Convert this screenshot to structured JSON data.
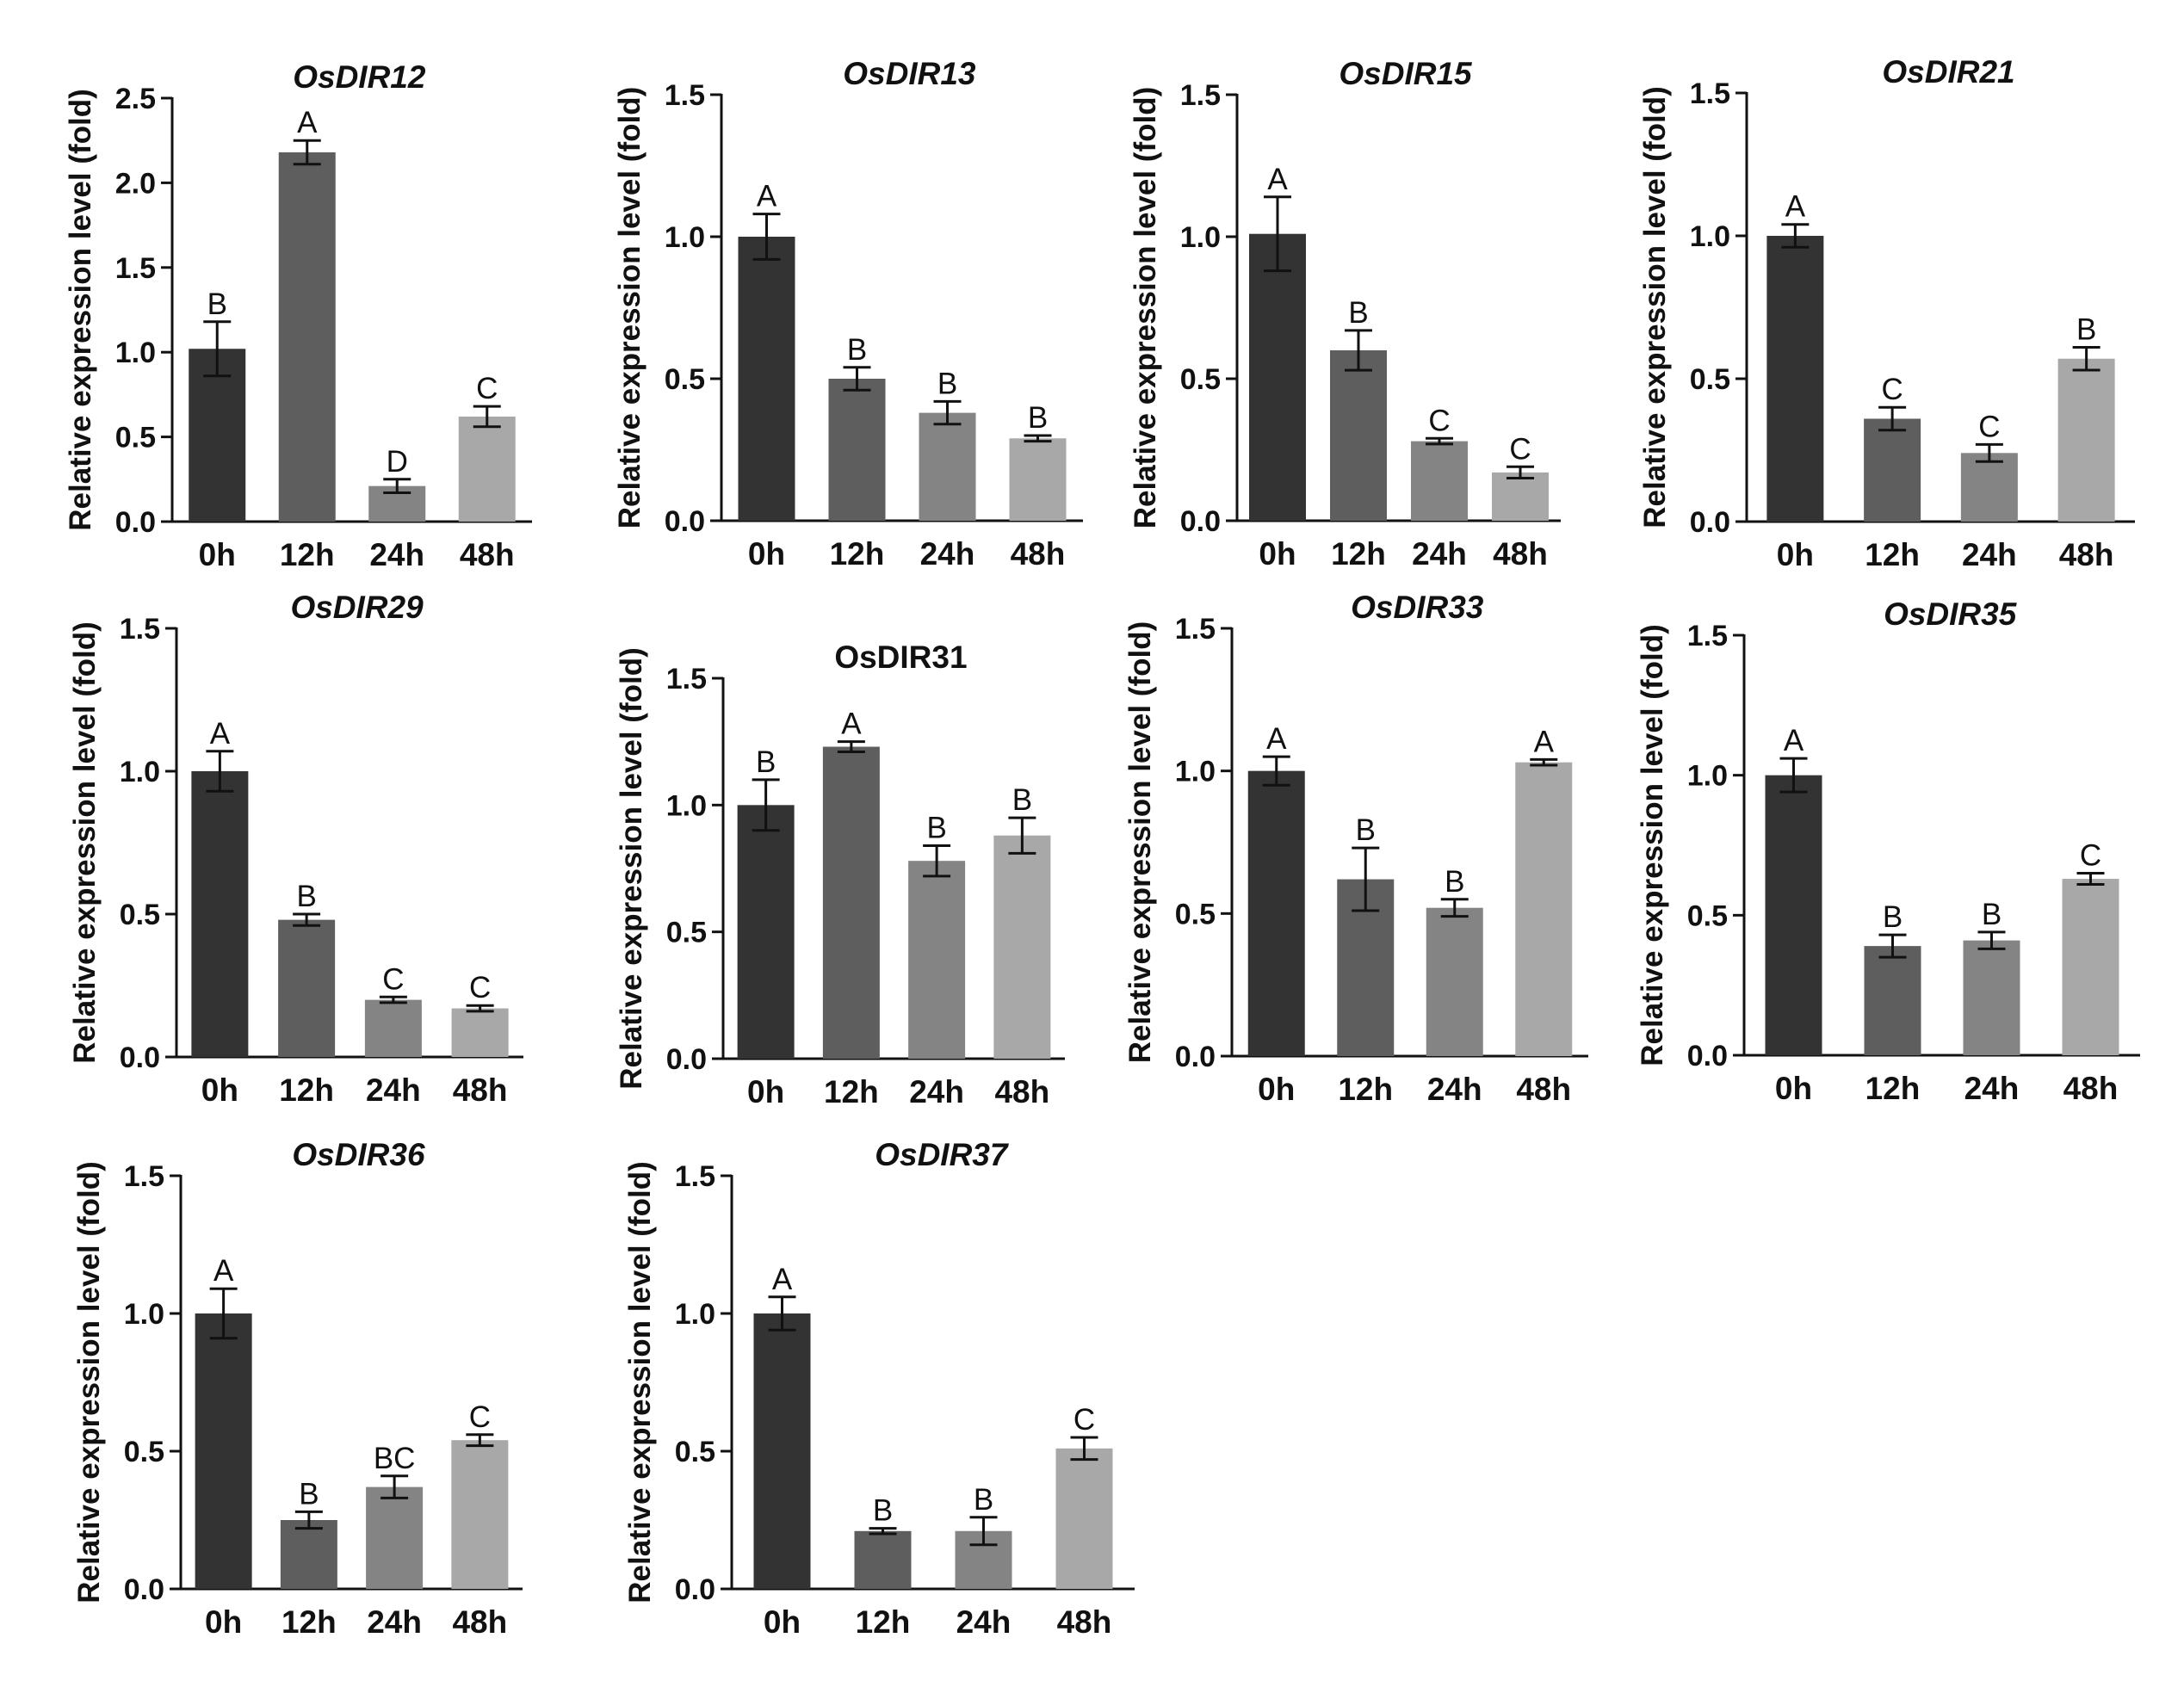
{
  "chart_data": [
    {
      "type": "bar",
      "title": "OsDIR12",
      "title_italic": true,
      "ylabel": "Relative expression level (fold)",
      "xlabel": "",
      "ylim": [
        0,
        2.5
      ],
      "yticks": [
        "0.0",
        "0.5",
        "1.0",
        "1.5",
        "2.0",
        "2.5"
      ],
      "categories": [
        "0h",
        "12h",
        "24h",
        "48h"
      ],
      "values": [
        1.02,
        2.18,
        0.21,
        0.62
      ],
      "errors": [
        0.16,
        0.07,
        0.04,
        0.06
      ],
      "letters": [
        "B",
        "A",
        "D",
        "C"
      ]
    },
    {
      "type": "bar",
      "title": "OsDIR13",
      "title_italic": true,
      "ylabel": "Relative expression level (fold)",
      "xlabel": "",
      "ylim": [
        0,
        1.5
      ],
      "yticks": [
        "0.0",
        "0.5",
        "1.0",
        "1.5"
      ],
      "categories": [
        "0h",
        "12h",
        "24h",
        "48h"
      ],
      "values": [
        1.0,
        0.5,
        0.38,
        0.29
      ],
      "errors": [
        0.08,
        0.04,
        0.04,
        0.01
      ],
      "letters": [
        "A",
        "B",
        "B",
        "B"
      ]
    },
    {
      "type": "bar",
      "title": "OsDIR15",
      "title_italic": true,
      "ylabel": "Relative expression level (fold)",
      "xlabel": "",
      "ylim": [
        0,
        1.5
      ],
      "yticks": [
        "0.0",
        "0.5",
        "1.0",
        "1.5"
      ],
      "categories": [
        "0h",
        "12h",
        "24h",
        "48h"
      ],
      "values": [
        1.01,
        0.6,
        0.28,
        0.17
      ],
      "errors": [
        0.13,
        0.07,
        0.01,
        0.02
      ],
      "letters": [
        "A",
        "B",
        "C",
        "C"
      ]
    },
    {
      "type": "bar",
      "title": "OsDIR21",
      "title_italic": true,
      "ylabel": "Relative expression level (fold)",
      "xlabel": "",
      "ylim": [
        0,
        1.5
      ],
      "yticks": [
        "0.0",
        "0.5",
        "1.0",
        "1.5"
      ],
      "categories": [
        "0h",
        "12h",
        "24h",
        "48h"
      ],
      "values": [
        1.0,
        0.36,
        0.24,
        0.57
      ],
      "errors": [
        0.04,
        0.04,
        0.03,
        0.04
      ],
      "letters": [
        "A",
        "C",
        "C",
        "B"
      ]
    },
    {
      "type": "bar",
      "title": "OsDIR29",
      "title_italic": true,
      "ylabel": "Relative expression level (fold)",
      "xlabel": "",
      "ylim": [
        0,
        1.5
      ],
      "yticks": [
        "0.0",
        "0.5",
        "1.0",
        "1.5"
      ],
      "categories": [
        "0h",
        "12h",
        "24h",
        "48h"
      ],
      "values": [
        1.0,
        0.48,
        0.2,
        0.17
      ],
      "errors": [
        0.07,
        0.02,
        0.01,
        0.01
      ],
      "letters": [
        "A",
        "B",
        "C",
        "C"
      ]
    },
    {
      "type": "bar",
      "title": "OsDIR31",
      "title_italic": false,
      "ylabel": "Relative expression level (fold)",
      "xlabel": "",
      "ylim": [
        0,
        1.5
      ],
      "yticks": [
        "0.0",
        "0.5",
        "1.0",
        "1.5"
      ],
      "categories": [
        "0h",
        "12h",
        "24h",
        "48h"
      ],
      "values": [
        1.0,
        1.23,
        0.78,
        0.88
      ],
      "errors": [
        0.1,
        0.02,
        0.06,
        0.07
      ],
      "letters": [
        "B",
        "A",
        "B",
        "B"
      ]
    },
    {
      "type": "bar",
      "title": "OsDIR33",
      "title_italic": true,
      "ylabel": "Relative expression level (fold)",
      "xlabel": "",
      "ylim": [
        0,
        1.5
      ],
      "yticks": [
        "0.0",
        "0.5",
        "1.0",
        "1.5"
      ],
      "categories": [
        "0h",
        "12h",
        "24h",
        "48h"
      ],
      "values": [
        1.0,
        0.62,
        0.52,
        1.03
      ],
      "errors": [
        0.05,
        0.11,
        0.03,
        0.01
      ],
      "letters": [
        "A",
        "B",
        "B",
        "A"
      ]
    },
    {
      "type": "bar",
      "title": "OsDIR35",
      "title_italic": true,
      "ylabel": "Relative expression level (fold)",
      "xlabel": "",
      "ylim": [
        0,
        1.5
      ],
      "yticks": [
        "0.0",
        "0.5",
        "1.0",
        "1.5"
      ],
      "categories": [
        "0h",
        "12h",
        "24h",
        "48h"
      ],
      "values": [
        1.0,
        0.39,
        0.41,
        0.63
      ],
      "errors": [
        0.06,
        0.04,
        0.03,
        0.02
      ],
      "letters": [
        "A",
        "B",
        "B",
        "C"
      ]
    },
    {
      "type": "bar",
      "title": "OsDIR36",
      "title_italic": true,
      "ylabel": "Relative expression level (fold)",
      "xlabel": "",
      "ylim": [
        0,
        1.5
      ],
      "yticks": [
        "0.0",
        "0.5",
        "1.0",
        "1.5"
      ],
      "categories": [
        "0h",
        "12h",
        "24h",
        "48h"
      ],
      "values": [
        1.0,
        0.25,
        0.37,
        0.54
      ],
      "errors": [
        0.09,
        0.03,
        0.04,
        0.02
      ],
      "letters": [
        "A",
        "B",
        "BC",
        "C"
      ]
    },
    {
      "type": "bar",
      "title": "OsDIR37",
      "title_italic": true,
      "ylabel": "Relative expression level (fold)",
      "xlabel": "",
      "ylim": [
        0,
        1.5
      ],
      "yticks": [
        "0.0",
        "0.5",
        "1.0",
        "1.5"
      ],
      "categories": [
        "0h",
        "12h",
        "24h",
        "48h"
      ],
      "values": [
        1.0,
        0.21,
        0.21,
        0.51
      ],
      "errors": [
        0.06,
        0.01,
        0.05,
        0.04
      ],
      "letters": [
        "A",
        "B",
        "B",
        "C"
      ]
    }
  ],
  "colors": {
    "bars": [
      "#333333",
      "#5e5e5e",
      "#848484",
      "#a8a8a8"
    ],
    "axis": "#111111",
    "background": "#ffffff"
  }
}
